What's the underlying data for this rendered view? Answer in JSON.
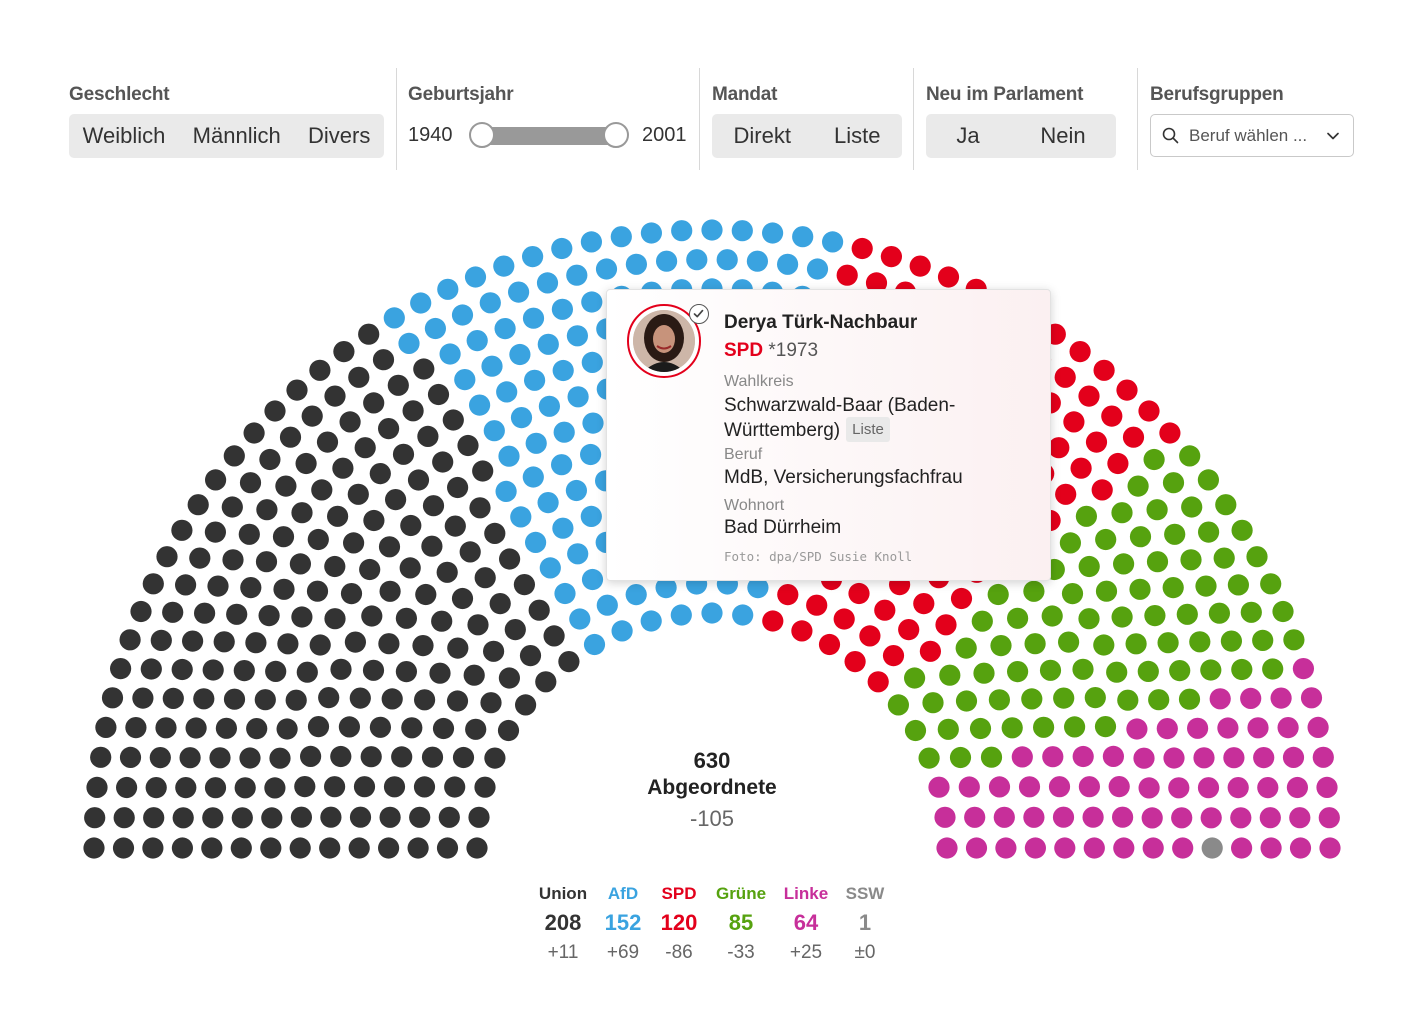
{
  "filters": {
    "gender": {
      "title": "Geschlecht",
      "options": [
        "Weiblich",
        "Männlich",
        "Divers"
      ]
    },
    "birthyear": {
      "title": "Geburtsjahr",
      "min": "1940",
      "max": "2001"
    },
    "mandate": {
      "title": "Mandat",
      "options": [
        "Direkt",
        "Liste"
      ]
    },
    "newcomer": {
      "title": "Neu im Parlament",
      "options": [
        "Ja",
        "Nein"
      ]
    },
    "profession": {
      "title": "Berufsgruppen",
      "placeholder": "Beruf wählen ..."
    }
  },
  "summary": {
    "total": "630",
    "label": "Abgeordnete",
    "change": "-105"
  },
  "tooltip": {
    "name": "Derya Türk-Nachbaur",
    "party": "SPD",
    "birth": "*1973",
    "constituency_label": "Wahlkreis",
    "constituency_line1": "Schwarzwald-Baar (Baden-",
    "constituency_line2": "Württemberg)",
    "mandate_badge": "Liste",
    "job_label": "Beruf",
    "job": "MdB, Versicherungsfachfrau",
    "residence_label": "Wohnort",
    "residence": "Bad Dürrheim",
    "credit": "Foto: dpa/SPD Susie Knoll"
  },
  "chart_data": {
    "type": "parliament",
    "parties": [
      {
        "name": "Union",
        "seats": 208,
        "seats_label": "208",
        "change": "+11",
        "color": "#333333"
      },
      {
        "name": "AfD",
        "seats": 152,
        "seats_label": "152",
        "change": "+69",
        "color": "#3aa3e0"
      },
      {
        "name": "SPD",
        "seats": 120,
        "seats_label": "120",
        "change": "-86",
        "color": "#e3001b"
      },
      {
        "name": "Grüne",
        "seats": 85,
        "seats_label": "85",
        "change": "-33",
        "color": "#56a20f"
      },
      {
        "name": "Linke",
        "seats": 64,
        "seats_label": "64",
        "change": "+25",
        "color": "#c72f9a"
      },
      {
        "name": "SSW",
        "seats": 1,
        "seats_label": "1",
        "change": "±0",
        "color": "#8a8a8a"
      }
    ],
    "total": 630
  }
}
